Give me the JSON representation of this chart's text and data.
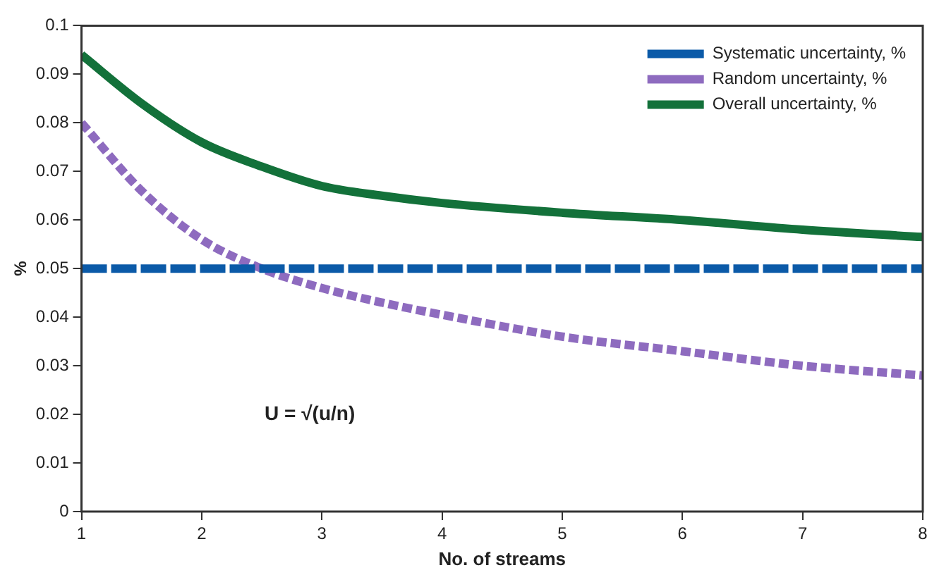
{
  "chart_data": {
    "type": "line",
    "xlabel": "No. of streams",
    "ylabel": "%",
    "x": [
      1,
      1.5,
      2,
      2.5,
      3,
      3.5,
      4,
      5,
      6,
      7,
      8
    ],
    "series": [
      {
        "name": "Systematic uncertainty, %",
        "color": "#0b5aa8",
        "line_style": "dashed",
        "values": [
          0.05,
          0.05,
          0.05,
          0.05,
          0.05,
          0.05,
          0.05,
          0.05,
          0.05,
          0.05,
          0.05
        ]
      },
      {
        "name": "Random uncertainty, %",
        "color": "#8e6bbf",
        "line_style": "dotted",
        "values": [
          0.08,
          0.066,
          0.056,
          0.05,
          0.046,
          0.043,
          0.0405,
          0.036,
          0.033,
          0.03,
          0.028
        ]
      },
      {
        "name": "Overall uncertainty, %",
        "color": "#13713a",
        "line_style": "solid",
        "values": [
          0.094,
          0.084,
          0.076,
          0.071,
          0.067,
          0.065,
          0.0635,
          0.0615,
          0.06,
          0.058,
          0.0565
        ]
      }
    ],
    "xlim": [
      1,
      8
    ],
    "xticks": [
      1,
      2,
      3,
      4,
      5,
      6,
      7,
      8
    ],
    "ylim": [
      0,
      0.1
    ],
    "yticks": [
      0,
      0.01,
      0.02,
      0.03,
      0.04,
      0.05,
      0.06,
      0.07,
      0.08,
      0.09,
      0.1
    ],
    "annotations": [
      "U = √(u/n)"
    ],
    "grid": false,
    "legend": "top right",
    "marker": "none"
  }
}
